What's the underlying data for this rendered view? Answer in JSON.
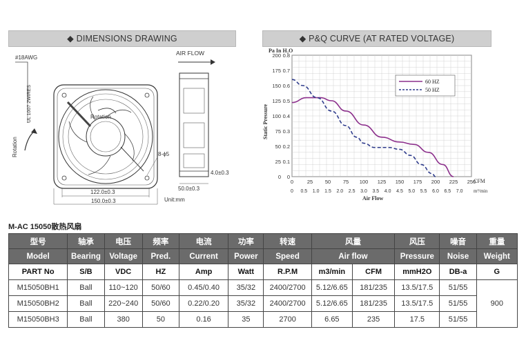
{
  "headers": {
    "dimensions": "◆ DIMENSIONS DRAWING",
    "pq": "◆ P&Q CURVE (AT RATED VOLTAGE)"
  },
  "drawing": {
    "wire_label": "#18AWG",
    "wire_spec": "UL 1007 2WIRES",
    "airflow_label": "AIR FLOW",
    "rotation_center": "Rotation",
    "rotation_side": "Rotation",
    "hole_label": "8-ϕ5",
    "dim_122": "122.0±0.3",
    "dim_150": "150.0±0.3",
    "dim_50": "50.0±0.3",
    "dim_4": "4.0±0.3",
    "unit": "Unit:mm"
  },
  "chart_data": {
    "type": "line",
    "y_unit_label": "Pa  In H₂O",
    "y_axis_label": "Static Pressure",
    "x_axis_label": "Air Flow",
    "x_top_unit": "CFM",
    "x_bottom_unit": "m³/min",
    "y_ticks": [
      "0",
      "25",
      "50",
      "75",
      "100",
      "125",
      "150",
      "175",
      "200"
    ],
    "y_ticks_inh2o": [
      "0",
      "0.1",
      "0.2",
      "0.3",
      "0.4",
      "0.5",
      "0.6",
      "0.7",
      "0.8"
    ],
    "x_ticks_cfm": [
      "0",
      "25",
      "50",
      "75",
      "100",
      "125",
      "150",
      "175",
      "200",
      "225",
      "250"
    ],
    "x_ticks_m3": [
      "0",
      "0.5",
      "1.0",
      "1.5",
      "2.0",
      "2.5",
      "3.0",
      "3.5",
      "4.0",
      "4.5",
      "5.0",
      "5.5",
      "6.0",
      "6.5",
      "7.0"
    ],
    "xlim": [
      0,
      250
    ],
    "ylim": [
      0,
      200
    ],
    "grid": true,
    "legend_position": "top-right",
    "series": [
      {
        "name": "60 HZ",
        "color": "#8b2e8b",
        "style": "solid",
        "x": [
          0,
          20,
          40,
          55,
          75,
          100,
          125,
          150,
          170,
          190,
          210,
          225
        ],
        "y": [
          122,
          130,
          130,
          125,
          108,
          85,
          65,
          57,
          53,
          40,
          20,
          0
        ]
      },
      {
        "name": "50 HZ",
        "color": "#2e3b8b",
        "style": "dashed",
        "x": [
          0,
          15,
          35,
          55,
          75,
          90,
          100,
          115,
          135,
          150,
          165,
          180,
          195,
          200
        ],
        "y": [
          160,
          150,
          130,
          108,
          84,
          65,
          55,
          48,
          48,
          45,
          35,
          20,
          5,
          0
        ]
      }
    ]
  },
  "product": {
    "title": "M-AC 15050散热风扇"
  },
  "table": {
    "headers_cn": [
      "型号",
      "轴承",
      "电压",
      "频率",
      "电流",
      "功率",
      "转速",
      "风量",
      "风压",
      "噪音",
      "重量"
    ],
    "headers_en": [
      "Model",
      "Bearing",
      "Voltage",
      "Pred.",
      "Current",
      "Power",
      "Speed",
      "Air flow",
      "Pressure",
      "Noise",
      "Weight"
    ],
    "units": [
      "PART No",
      "S/B",
      "VDC",
      "HZ",
      "Amp",
      "Watt",
      "R.P.M",
      "m3/min",
      "CFM",
      "mmH2O",
      "DB-a",
      "G"
    ],
    "rows": [
      [
        "M15050BH1",
        "Ball",
        "110~120",
        "50/60",
        "0.45/0.40",
        "35/32",
        "2400/2700",
        "5.12/6.65",
        "181/235",
        "13.5/17.5",
        "51/55"
      ],
      [
        "M15050BH2",
        "Ball",
        "220~240",
        "50/60",
        "0.22/0.20",
        "35/32",
        "2400/2700",
        "5.12/6.65",
        "181/235",
        "13.5/17.5",
        "51/55"
      ],
      [
        "M15050BH3",
        "Ball",
        "380",
        "50",
        "0.16",
        "35",
        "2700",
        "6.65",
        "235",
        "17.5",
        "51/55"
      ]
    ],
    "weight": "900"
  }
}
